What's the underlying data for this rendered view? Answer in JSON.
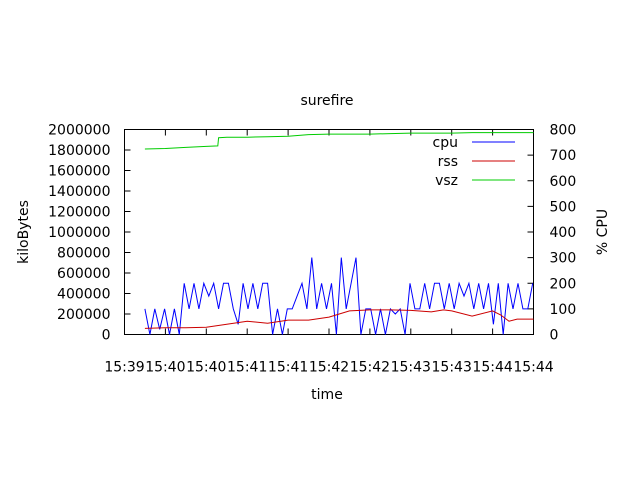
{
  "chart_data": {
    "type": "line",
    "title": "surefire",
    "xlabel": "time",
    "ylabel": "kiloBytes",
    "y2label": "% CPU",
    "xticks": [
      "15:39",
      "15:40",
      "15:40",
      "15:41",
      "15:41",
      "15:42",
      "15:42",
      "15:43",
      "15:43",
      "15:44",
      "15:44"
    ],
    "ylim": [
      0,
      2000000
    ],
    "y2lim": [
      0,
      800
    ],
    "yticks": [
      "0",
      "200000",
      "400000",
      "600000",
      "800000",
      "1000000",
      "1200000",
      "1400000",
      "1600000",
      "1800000",
      "2000000"
    ],
    "y2ticks": [
      "0",
      "100",
      "200",
      "300",
      "400",
      "500",
      "600",
      "700",
      "800"
    ],
    "legend_position": "top-right",
    "grid": false,
    "series": [
      {
        "name": "cpu",
        "axis": "y2",
        "color": "#0000ff",
        "x": [
          0.5,
          0.62,
          0.74,
          0.86,
          0.98,
          1.1,
          1.22,
          1.34,
          1.46,
          1.58,
          1.7,
          1.82,
          1.94,
          2.06,
          2.18,
          2.3,
          2.42,
          2.54,
          2.66,
          2.78,
          2.9,
          3.02,
          3.14,
          3.26,
          3.38,
          3.5,
          3.62,
          3.74,
          3.86,
          3.98,
          4.1,
          4.22,
          4.34,
          4.46,
          4.58,
          4.7,
          4.82,
          4.94,
          5.06,
          5.18,
          5.3,
          5.42,
          5.54,
          5.66,
          5.78,
          5.9,
          6.02,
          6.14,
          6.26,
          6.38,
          6.5,
          6.62,
          6.74,
          6.86,
          6.98,
          7.1,
          7.22,
          7.34,
          7.46,
          7.58,
          7.7,
          7.82,
          7.94,
          8.06,
          8.18,
          8.3,
          8.42,
          8.54,
          8.66,
          8.78,
          8.9,
          9.02,
          9.14,
          9.26,
          9.38,
          9.5,
          9.62,
          9.74,
          9.86,
          9.98
        ],
        "values": [
          100,
          0,
          100,
          20,
          100,
          0,
          100,
          0,
          200,
          100,
          200,
          100,
          200,
          150,
          200,
          100,
          200,
          200,
          100,
          40,
          200,
          100,
          200,
          100,
          200,
          200,
          0,
          100,
          0,
          100,
          100,
          150,
          200,
          100,
          300,
          100,
          200,
          100,
          200,
          0,
          300,
          100,
          200,
          300,
          0,
          100,
          100,
          0,
          100,
          0,
          100,
          80,
          100,
          0,
          200,
          100,
          100,
          200,
          100,
          200,
          200,
          100,
          200,
          100,
          200,
          150,
          200,
          100,
          200,
          100,
          200,
          40,
          200,
          0,
          200,
          100,
          200,
          100,
          100,
          200
        ]
      },
      {
        "name": "rss",
        "axis": "y",
        "color": "#cc0000",
        "x": [
          0.5,
          1.0,
          1.5,
          2.0,
          2.5,
          3.0,
          3.5,
          4.0,
          4.5,
          5.0,
          5.5,
          6.0,
          6.5,
          7.0,
          7.5,
          7.8,
          8.0,
          8.5,
          9.0,
          9.2,
          9.4,
          9.6,
          10.0
        ],
        "values": [
          60000,
          65000,
          65000,
          70000,
          100000,
          130000,
          110000,
          140000,
          140000,
          170000,
          230000,
          240000,
          240000,
          235000,
          220000,
          240000,
          230000,
          180000,
          230000,
          190000,
          130000,
          150000,
          150000
        ]
      },
      {
        "name": "vsz",
        "axis": "y",
        "color": "#00cc00",
        "x": [
          0.5,
          1.0,
          1.5,
          2.0,
          2.28,
          2.3,
          2.5,
          3.0,
          3.5,
          4.0,
          4.5,
          5.0,
          5.5,
          6.0,
          6.5,
          7.0,
          7.5,
          8.0,
          8.5,
          9.0,
          9.5,
          10.0
        ],
        "values": [
          1810000,
          1815000,
          1825000,
          1835000,
          1840000,
          1920000,
          1925000,
          1925000,
          1930000,
          1935000,
          1950000,
          1955000,
          1955000,
          1955000,
          1960000,
          1965000,
          1965000,
          1965000,
          1970000,
          1970000,
          1970000,
          1970000
        ]
      }
    ]
  }
}
